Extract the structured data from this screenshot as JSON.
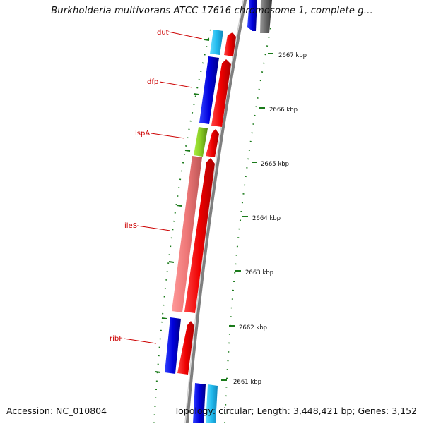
{
  "title": "Burkholderia multivorans ATCC 17616 chromosome 1, complete g...",
  "footer": {
    "accession": "Accession: NC_010804",
    "summary": "Topology: circular; Length: 3,448,421 bp; Genes: 3,152"
  },
  "colors": {
    "backbone": "#8a8a8a",
    "tick": "#1a7a1a",
    "label": "#cc0000",
    "forward_gene": "#ee0000",
    "reverse_gene": "#0000dd",
    "cyan_gene": "#22bbee",
    "pink_gene": "#ee7777",
    "lime_gene": "#88cc22"
  },
  "gene_labels": [
    "dut",
    "dfp",
    "lspA",
    "ileS",
    "ribF"
  ],
  "kbp_ticks": [
    "2667 kbp",
    "2666 kbp",
    "2665 kbp",
    "2664 kbp",
    "2663 kbp",
    "2662 kbp",
    "2661 kbp"
  ]
}
